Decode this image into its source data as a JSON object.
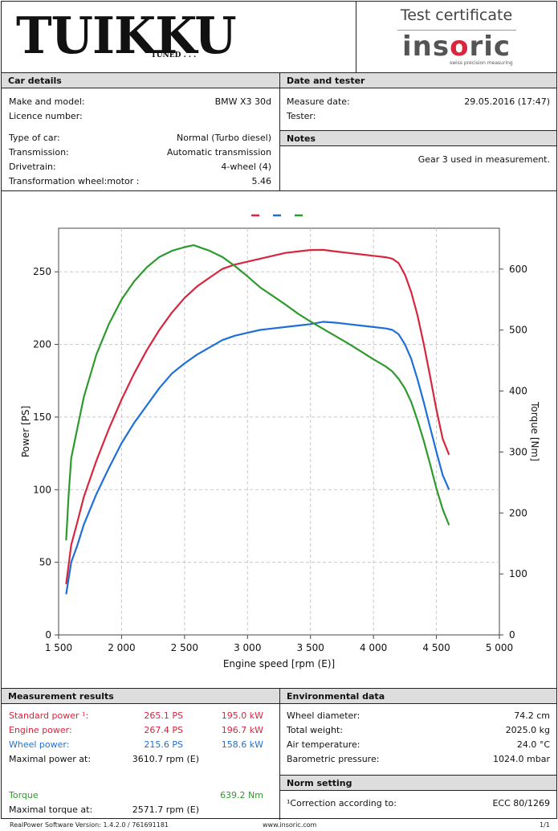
{
  "header": {
    "logo_main": "TUIKKU",
    "logo_sub": "TUNED . . .",
    "cert_title": "Test certificate",
    "brand_a": "ins",
    "brand_o": "o",
    "brand_b": "ric",
    "brand_tag": "swiss precision measuring"
  },
  "car": {
    "title": "Car details",
    "make_label": "Make and model:",
    "make_value": "BMW  X3  30d",
    "licence_label": "Licence number:",
    "licence_value": "",
    "type_label": "Type of car:",
    "type_value": "Normal (Turbo diesel)",
    "trans_label": "Transmission:",
    "trans_value": "Automatic transmission",
    "drive_label": "Drivetrain:",
    "drive_value": "4-wheel (4)",
    "ratio_label": "Transformation wheel:motor :",
    "ratio_value": "5.46"
  },
  "date": {
    "title": "Date and tester",
    "measure_label": "Measure date:",
    "measure_value": "29.05.2016 (17:47)",
    "tester_label": "Tester:",
    "tester_value": ""
  },
  "notes": {
    "title": "Notes",
    "text": "Gear 3 used in measurement."
  },
  "results": {
    "title": "Measurement results",
    "std_label": "Standard power ¹:",
    "std_ps": "265.1 PS",
    "std_kw": "195.0 kW",
    "eng_label": "Engine power:",
    "eng_ps": "267.4 PS",
    "eng_kw": "196.7 kW",
    "wheel_label": "Wheel power:",
    "wheel_ps": "215.6 PS",
    "wheel_kw": "158.6 kW",
    "maxp_label": "Maximal power at:",
    "maxp_value": "3610.7 rpm (E)",
    "torque_label": "Torque",
    "torque_value": "639.2 Nm",
    "maxt_label": "Maximal torque at:",
    "maxt_value": "2571.7 rpm (E)"
  },
  "env": {
    "title": "Environmental data",
    "diam_label": "Wheel diameter:",
    "diam_value": "74.2 cm",
    "weight_label": "Total weight:",
    "weight_value": "2025.0 kg",
    "air_label": "Air temperature:",
    "air_value": "24.0 °C",
    "baro_label": "Barometric pressure:",
    "baro_value": "1024.0 mbar"
  },
  "norm": {
    "title": "Norm setting",
    "corr_label": "¹Correction according to:",
    "corr_value": "ECC 80/1269"
  },
  "footer": {
    "left": "RealPower Software Version:  1.4.2.0 / 761691181",
    "center": "www.insoric.com",
    "right": "1/1"
  },
  "colors": {
    "red": "#d7263d",
    "blue": "#1f6fd6",
    "green": "#2e9a2e"
  },
  "chart_data": {
    "type": "line",
    "xlabel": "Engine speed [rpm (E)]",
    "ylabel": "Power [PS]",
    "y2label": "Torque [Nm]",
    "xlim": [
      1500,
      5000
    ],
    "ylim": [
      0,
      280
    ],
    "y2lim": [
      0,
      667
    ],
    "x_ticks": [
      "1 500",
      "2 000",
      "2 500",
      "3 000",
      "3 500",
      "4 000",
      "4 500",
      "5 000"
    ],
    "y_ticks": [
      "0",
      "50",
      "100",
      "150",
      "200",
      "250"
    ],
    "y2_ticks": [
      "0",
      "100",
      "200",
      "300",
      "400",
      "500",
      "600"
    ],
    "grid": true,
    "series": [
      {
        "axis": "left",
        "color": "#d7263d",
        "x": [
          1560,
          1600,
          1650,
          1700,
          1800,
          1900,
          2000,
          2100,
          2200,
          2300,
          2400,
          2500,
          2600,
          2700,
          2800,
          2900,
          3000,
          3100,
          3200,
          3300,
          3400,
          3500,
          3600,
          3700,
          3800,
          3900,
          4000,
          4100,
          4150,
          4200,
          4250,
          4300,
          4350,
          4400,
          4450,
          4500,
          4550,
          4600
        ],
        "y": [
          35,
          62,
          78,
          95,
          120,
          142,
          162,
          180,
          196,
          210,
          222,
          232,
          240,
          246,
          252,
          255,
          257,
          259,
          261,
          263,
          264,
          265,
          265.1,
          264,
          263,
          262,
          261,
          260,
          259,
          256,
          248,
          236,
          220,
          200,
          178,
          155,
          135,
          124
        ]
      },
      {
        "axis": "left",
        "color": "#1f6fd6",
        "x": [
          1560,
          1600,
          1650,
          1700,
          1800,
          1900,
          2000,
          2100,
          2200,
          2300,
          2400,
          2500,
          2600,
          2700,
          2800,
          2900,
          3000,
          3100,
          3200,
          3300,
          3400,
          3500,
          3600,
          3700,
          3800,
          3900,
          4000,
          4100,
          4150,
          4200,
          4250,
          4300,
          4350,
          4400,
          4450,
          4500,
          4550,
          4600
        ],
        "y": [
          28,
          50,
          62,
          76,
          97,
          115,
          132,
          146,
          158,
          170,
          180,
          187,
          193,
          198,
          203,
          206,
          208,
          210,
          211,
          212,
          213,
          214,
          215.6,
          215,
          214,
          213,
          212,
          211,
          210,
          207,
          200,
          190,
          176,
          160,
          143,
          126,
          110,
          100
        ]
      },
      {
        "axis": "right",
        "color": "#2e9a2e",
        "x": [
          1560,
          1580,
          1600,
          1650,
          1700,
          1800,
          1900,
          2000,
          2100,
          2200,
          2300,
          2400,
          2500,
          2572,
          2700,
          2800,
          2900,
          3000,
          3100,
          3200,
          3300,
          3400,
          3500,
          3600,
          3700,
          3800,
          3900,
          4000,
          4100,
          4150,
          4200,
          4250,
          4300,
          4350,
          4400,
          4450,
          4500,
          4550,
          4600
        ],
        "y": [
          155,
          230,
          290,
          340,
          390,
          460,
          510,
          550,
          580,
          603,
          620,
          630,
          636,
          639.2,
          630,
          620,
          605,
          588,
          570,
          556,
          542,
          527,
          514,
          502,
          490,
          478,
          465,
          452,
          440,
          432,
          420,
          404,
          382,
          352,
          318,
          280,
          240,
          206,
          180
        ]
      }
    ]
  }
}
